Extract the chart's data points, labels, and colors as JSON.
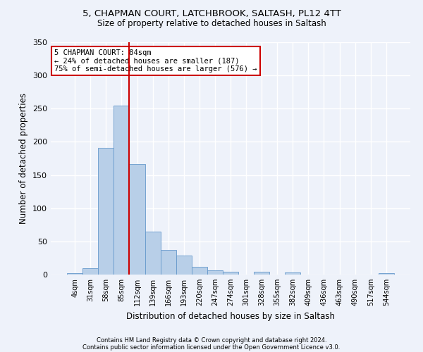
{
  "title_line1": "5, CHAPMAN COURT, LATCHBROOK, SALTASH, PL12 4TT",
  "title_line2": "Size of property relative to detached houses in Saltash",
  "xlabel": "Distribution of detached houses by size in Saltash",
  "ylabel": "Number of detached properties",
  "footnote1": "Contains HM Land Registry data © Crown copyright and database right 2024.",
  "footnote2": "Contains public sector information licensed under the Open Government Licence v3.0.",
  "annotation_title": "5 CHAPMAN COURT: 84sqm",
  "annotation_line2": "← 24% of detached houses are smaller (187)",
  "annotation_line3": "75% of semi-detached houses are larger (576) →",
  "bar_color": "#b8cfe8",
  "bar_edge_color": "#6699cc",
  "vline_color": "#cc0000",
  "background_color": "#eef2fa",
  "grid_color": "#ffffff",
  "categories": [
    "4sqm",
    "31sqm",
    "58sqm",
    "85sqm",
    "112sqm",
    "139sqm",
    "166sqm",
    "193sqm",
    "220sqm",
    "247sqm",
    "274sqm",
    "301sqm",
    "328sqm",
    "355sqm",
    "382sqm",
    "409sqm",
    "436sqm",
    "463sqm",
    "490sqm",
    "517sqm",
    "544sqm"
  ],
  "values": [
    2,
    10,
    191,
    255,
    167,
    65,
    37,
    29,
    12,
    6,
    4,
    0,
    4,
    0,
    3,
    0,
    0,
    0,
    0,
    0,
    2
  ],
  "vline_position": 3.5,
  "ylim": [
    0,
    350
  ],
  "yticks": [
    0,
    50,
    100,
    150,
    200,
    250,
    300,
    350
  ]
}
